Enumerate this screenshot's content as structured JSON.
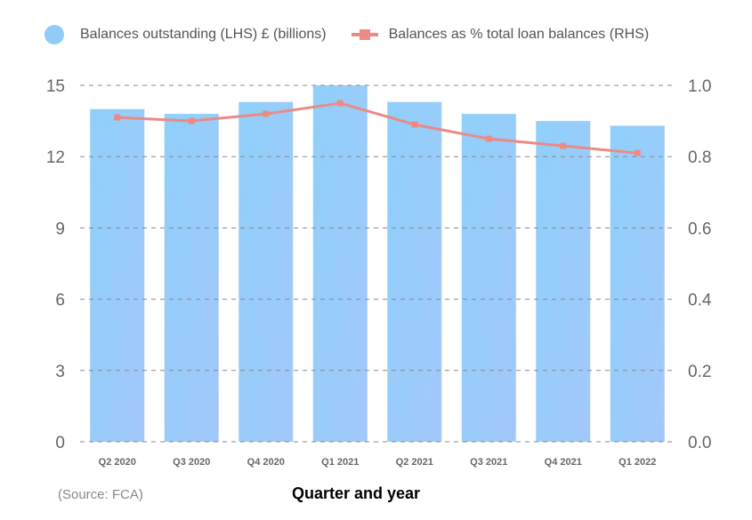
{
  "legend": {
    "bars_label": "Balances outstanding (LHS) £ (billions)",
    "line_label": "Balances as % total loan balances (RHS)"
  },
  "source": "(Source: FCA)",
  "colors": {
    "bar_top": "#8fd0fa",
    "bar_bottom": "#a3c8fb",
    "line": "#ec8a84",
    "grid": "#888888",
    "axis_text": "#666666"
  },
  "chart_data": {
    "type": "bar",
    "categories": [
      "Q2 2020",
      "Q3 2020",
      "Q4 2020",
      "Q1 2021",
      "Q2 2021",
      "Q3 2021",
      "Q4 2021",
      "Q1 2022"
    ],
    "series": [
      {
        "name": "Balances outstanding (LHS) £ (billions)",
        "type": "bar",
        "axis": "left",
        "values": [
          14.0,
          13.8,
          14.3,
          15.0,
          14.3,
          13.8,
          13.5,
          13.3
        ]
      },
      {
        "name": "Balances as % total loan balances (RHS)",
        "type": "line",
        "axis": "right",
        "values": [
          0.91,
          0.9,
          0.92,
          0.95,
          0.89,
          0.85,
          0.83,
          0.81
        ]
      }
    ],
    "xlabel": "Quarter and year",
    "ylabel": "",
    "ylim": [
      0,
      15
    ],
    "y_ticks": [
      "0",
      "3",
      "6",
      "9",
      "12",
      "15"
    ],
    "y2lim": [
      0,
      1.0
    ],
    "y2_ticks": [
      "0.0",
      "0.2",
      "0.4",
      "0.6",
      "0.8",
      "1.0"
    ],
    "grid": true,
    "legend_position": "top"
  }
}
